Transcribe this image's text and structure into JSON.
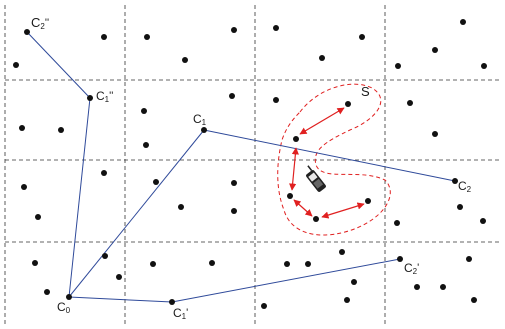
{
  "colors": {
    "grid": "#333333",
    "node": "#111111",
    "path": "#2f4a9a",
    "region": "#e02020",
    "arrow": "#e02020"
  },
  "labels": {
    "c0": "C",
    "c0_sub": "0",
    "c1": "C",
    "c1_sub": "1",
    "c1p": "C",
    "c1p_sub": "1",
    "c1p_mark": "'",
    "c1pp": "C",
    "c1pp_sub": "1",
    "c1pp_mark": "''",
    "c2": "C",
    "c2_sub": "2",
    "c2p": "C",
    "c2p_sub": "2",
    "c2p_mark": "'",
    "c2pp": "C",
    "c2pp_sub": "2",
    "c2pp_mark": "''",
    "s": "S"
  },
  "icons": {
    "phone": "mobile-phone-icon"
  }
}
